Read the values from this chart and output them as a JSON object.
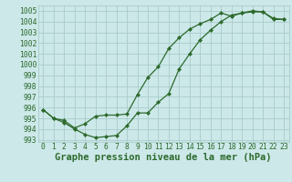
{
  "title": "Graphe pression niveau de la mer (hPa)",
  "xlim": [
    -0.5,
    23.5
  ],
  "ylim": [
    992.8,
    1005.5
  ],
  "xticks": [
    0,
    1,
    2,
    3,
    4,
    5,
    6,
    7,
    8,
    9,
    10,
    11,
    12,
    13,
    14,
    15,
    16,
    17,
    18,
    19,
    20,
    21,
    22,
    23
  ],
  "yticks": [
    993,
    994,
    995,
    996,
    997,
    998,
    999,
    1000,
    1001,
    1002,
    1003,
    1004,
    1005
  ],
  "line1_x": [
    0,
    1,
    2,
    3,
    4,
    5,
    6,
    7,
    8,
    9,
    10,
    11,
    12,
    13,
    14,
    15,
    16,
    17,
    18,
    19,
    20,
    21,
    22,
    23
  ],
  "line1_y": [
    995.8,
    995.0,
    994.6,
    994.0,
    993.5,
    993.2,
    993.3,
    993.4,
    994.3,
    995.5,
    995.5,
    996.5,
    997.3,
    999.6,
    1001.0,
    1002.3,
    1003.2,
    1004.0,
    1004.6,
    1004.8,
    1004.9,
    1004.9,
    1004.3,
    1004.2
  ],
  "line2_x": [
    0,
    1,
    2,
    3,
    4,
    5,
    6,
    7,
    8,
    9,
    10,
    11,
    12,
    13,
    14,
    15,
    16,
    17,
    18,
    19,
    20,
    21,
    22,
    23
  ],
  "line2_y": [
    995.8,
    995.0,
    994.8,
    994.1,
    994.5,
    995.2,
    995.3,
    995.3,
    995.4,
    997.2,
    998.8,
    999.8,
    1001.5,
    1002.5,
    1003.3,
    1003.8,
    1004.2,
    1004.8,
    1004.5,
    1004.8,
    1005.0,
    1004.9,
    1004.2,
    1004.2
  ],
  "line_color": "#2d6a2d",
  "bg_color": "#cce8e8",
  "grid_color": "#aacccc",
  "title_fontsize": 7.5,
  "tick_fontsize": 5.8
}
